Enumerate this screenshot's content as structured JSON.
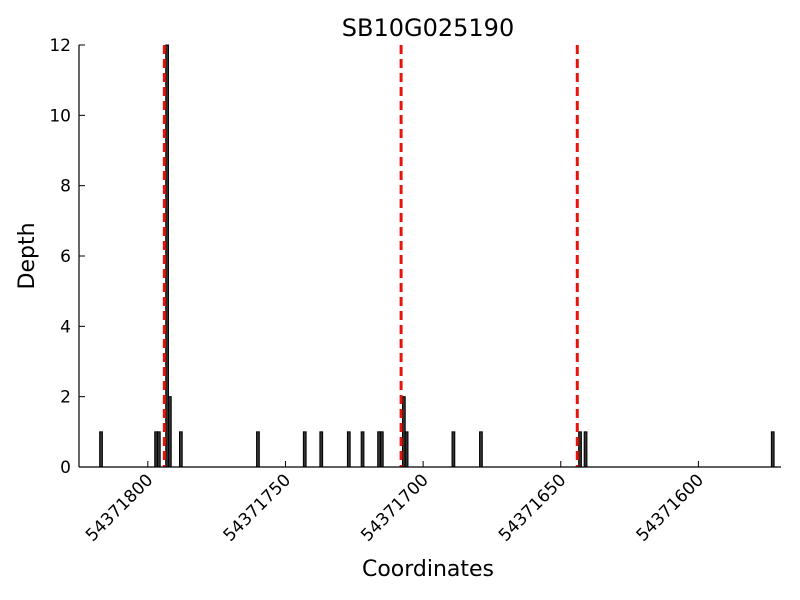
{
  "chart_data": {
    "type": "bar",
    "title": "SB10G025190",
    "xlabel": "Coordinates",
    "ylabel": "Depth",
    "x_reversed": true,
    "xlim": [
      54371825,
      54371570
    ],
    "ylim": [
      0,
      12
    ],
    "grid": false,
    "legend": "none",
    "x_ticks": [
      54371800,
      54371750,
      54371700,
      54371650,
      54371600
    ],
    "y_ticks": [
      0,
      2,
      4,
      6,
      8,
      10,
      12
    ],
    "bar_width": 1,
    "series": [
      {
        "color": "#333333",
        "points": [
          {
            "x": 54371817,
            "y": 1
          },
          {
            "x": 54371797,
            "y": 1
          },
          {
            "x": 54371796,
            "y": 1
          },
          {
            "x": 54371793,
            "y": 12
          },
          {
            "x": 54371792,
            "y": 2
          },
          {
            "x": 54371788,
            "y": 1
          },
          {
            "x": 54371760,
            "y": 1
          },
          {
            "x": 54371743,
            "y": 1
          },
          {
            "x": 54371737,
            "y": 1
          },
          {
            "x": 54371727,
            "y": 1
          },
          {
            "x": 54371722,
            "y": 1
          },
          {
            "x": 54371716,
            "y": 1
          },
          {
            "x": 54371715,
            "y": 1
          },
          {
            "x": 54371707,
            "y": 2
          },
          {
            "x": 54371706,
            "y": 1
          },
          {
            "x": 54371689,
            "y": 1
          },
          {
            "x": 54371679,
            "y": 1
          },
          {
            "x": 54371643,
            "y": 1
          },
          {
            "x": 54371641,
            "y": 1
          },
          {
            "x": 54371573,
            "y": 1
          }
        ]
      }
    ],
    "markers": {
      "color": "#e8140c",
      "style": "dashed",
      "x": [
        54371794,
        54371708,
        54371644
      ]
    }
  }
}
